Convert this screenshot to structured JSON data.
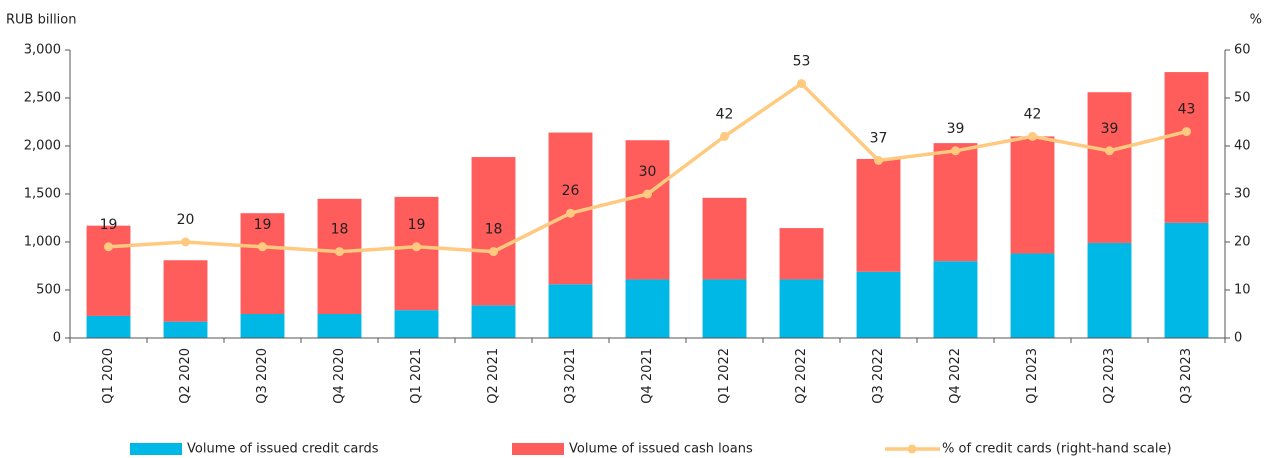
{
  "chart_data": {
    "type": "bar",
    "y_label": "RUB  billion",
    "y2_label": "%",
    "categories": [
      "Q1 2020",
      "Q2 2020",
      "Q3 2020",
      "Q4 2020",
      "Q1 2021",
      "Q2 2021",
      "Q3 2021",
      "Q4 2021",
      "Q1 2022",
      "Q2 2022",
      "Q3 2022",
      "Q4 2022",
      "Q1 2023",
      "Q2 2023",
      "Q3 2023"
    ],
    "series": [
      {
        "name": "Volume of issued credit cards",
        "color": "#00b8e6",
        "stacked": true,
        "values": [
          230,
          170,
          250,
          250,
          290,
          340,
          560,
          610,
          610,
          610,
          690,
          800,
          880,
          990,
          1200
        ]
      },
      {
        "name": "Volume of issued cash loans",
        "color": "#ff5c5c",
        "stacked": true,
        "values": [
          940,
          640,
          1050,
          1200,
          1180,
          1545,
          1580,
          1450,
          850,
          535,
          1175,
          1230,
          1220,
          1570,
          1570
        ]
      },
      {
        "name": "% of credit cards (right-hand scale)",
        "color": "#ffc980",
        "type": "line",
        "axis": "y2",
        "values": [
          19,
          20,
          19,
          18,
          19,
          18,
          26,
          30,
          42,
          53,
          37,
          39,
          42,
          39,
          43
        ]
      }
    ],
    "ylim": [
      0,
      3000
    ],
    "yticks": [
      0,
      500,
      {
        "value": 1000,
        "label": "1,000"
      },
      {
        "value": 1500,
        "label": "1,500"
      },
      {
        "value": 2000,
        "label": "2,000"
      },
      {
        "value": 2500,
        "label": "2,500"
      },
      {
        "value": 3000,
        "label": "3,000"
      }
    ],
    "y2lim": [
      0,
      60
    ],
    "y2ticks": [
      0,
      10,
      20,
      30,
      40,
      50,
      60
    ]
  }
}
